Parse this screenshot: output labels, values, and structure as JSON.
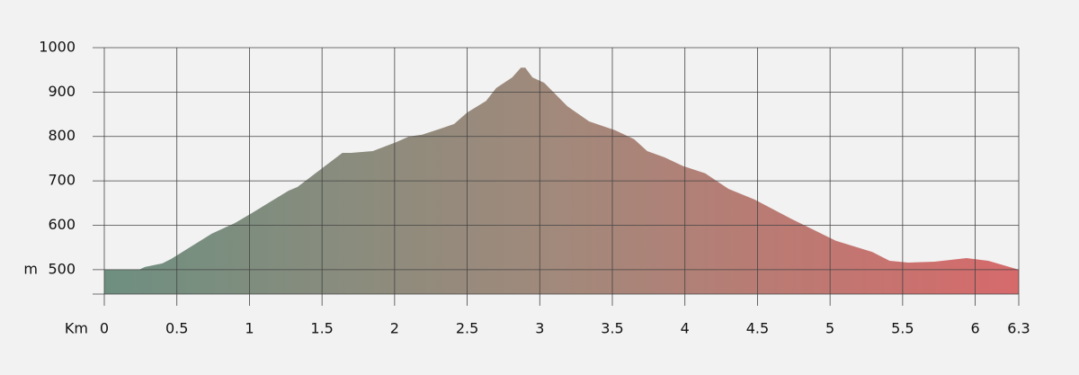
{
  "chart_data": {
    "type": "area",
    "x_unit": "Km",
    "y_unit": "m",
    "x": [
      0,
      0.24,
      0.28,
      0.4,
      0.46,
      0.74,
      0.9,
      1.02,
      1.14,
      1.27,
      1.33,
      1.64,
      1.7,
      1.85,
      2.01,
      2.1,
      2.19,
      2.32,
      2.41,
      2.5,
      2.63,
      2.7,
      2.81,
      2.87,
      2.9,
      2.95,
      3.03,
      3.19,
      3.34,
      3.52,
      3.65,
      3.74,
      3.86,
      3.99,
      4.14,
      4.3,
      4.48,
      4.73,
      5.04,
      5.29,
      5.41,
      5.54,
      5.72,
      5.94,
      6.09,
      6.3
    ],
    "values": [
      500,
      500,
      506,
      514,
      524,
      581,
      605,
      628,
      652,
      678,
      686,
      763,
      763,
      767,
      787,
      800,
      804,
      818,
      828,
      854,
      880,
      909,
      933,
      955,
      955,
      933,
      921,
      868,
      834,
      814,
      794,
      767,
      753,
      733,
      717,
      682,
      658,
      615,
      565,
      540,
      520,
      516,
      518,
      526,
      520,
      500
    ],
    "colors": [
      "#6e8f80",
      "#a2897b",
      "#d66a6b"
    ],
    "xlim": [
      0,
      6.3
    ],
    "ylim": [
      445,
      1000
    ],
    "xticks": [
      0,
      0.5,
      1,
      1.5,
      2,
      2.5,
      3,
      3.5,
      4,
      4.5,
      5,
      5.5,
      6,
      6.3
    ],
    "yticks": [
      500,
      600,
      700,
      800,
      900,
      1000
    ],
    "grid": true
  }
}
